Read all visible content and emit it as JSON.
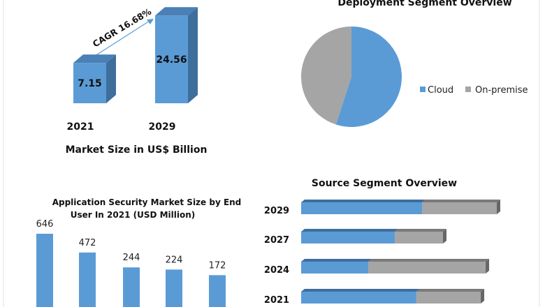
{
  "colors": {
    "blue": "#5b9bd5",
    "blue_dark": "#3e6e9c",
    "gray": "#a5a5a5",
    "gray_dark": "#7a7a7a"
  },
  "chart_data": [
    {
      "type": "bar",
      "title": "Market Size in US$ Billion",
      "categories": [
        "2021",
        "2029"
      ],
      "values": [
        7.15,
        24.56
      ],
      "value_labels": [
        "7.15",
        "24.56"
      ],
      "annotation": "CAGR 16.68%",
      "style": "3d-column"
    },
    {
      "type": "pie",
      "title": "Deployment Segment Overview",
      "labels": [
        "Cloud",
        "On-premise"
      ],
      "values": [
        55,
        45
      ],
      "legend": "right"
    },
    {
      "type": "bar",
      "title": "Application Security Market Size by End User  In 2021 (USD Million)",
      "title_lines": [
        "Application Security Market Size by End",
        "User  In 2021 (USD Million)"
      ],
      "values": [
        646,
        472,
        244,
        224,
        172
      ],
      "value_labels": [
        "646",
        "472",
        "244",
        "224",
        "172"
      ]
    },
    {
      "type": "bar",
      "orientation": "horizontal-stacked",
      "title": "Source  Segment Overview",
      "categories": [
        "2029",
        "2027",
        "2024",
        "2021"
      ],
      "series": [
        {
          "values": [
            61.8,
            47.9,
            34.3,
            58.9
          ]
        },
        {
          "values": [
            38.2,
            24.6,
            60.0,
            32.9
          ]
        }
      ]
    }
  ]
}
